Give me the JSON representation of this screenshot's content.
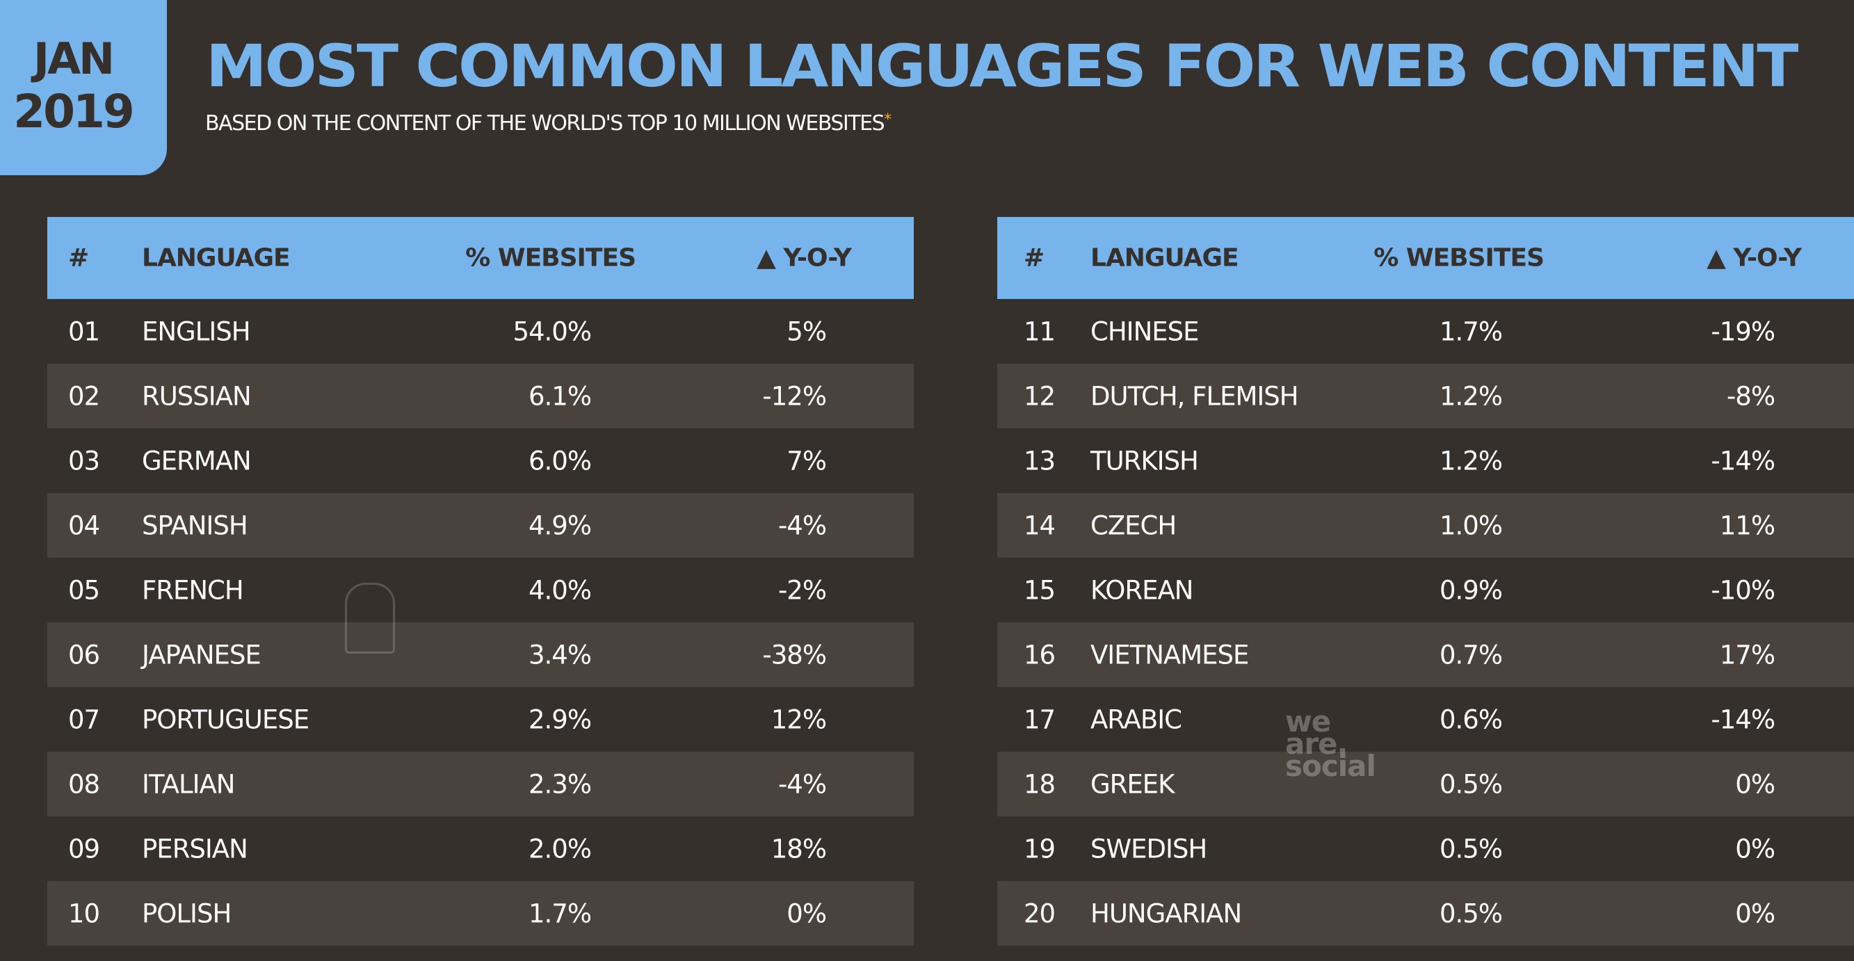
{
  "date": {
    "month": "JAN",
    "year": "2019"
  },
  "title": "MOST COMMON LANGUAGES FOR WEB CONTENT",
  "subtitle": "BASED ON THE CONTENT OF THE WORLD'S TOP 10 MILLION WEBSITES",
  "subtitle_marker": "*",
  "colors": {
    "accent": "#77b4ec",
    "background": "#35302c",
    "stripe": "#4a423d",
    "marker": "#f5a623"
  },
  "headers": {
    "num": "#",
    "language": "LANGUAGE",
    "pct": "% WEBSITES",
    "yoy": "▲ Y-O-Y"
  },
  "left_rows": [
    {
      "num": "01",
      "language": "ENGLISH",
      "pct": "54.0%",
      "yoy": "5%"
    },
    {
      "num": "02",
      "language": "RUSSIAN",
      "pct": "6.1%",
      "yoy": "-12%"
    },
    {
      "num": "03",
      "language": "GERMAN",
      "pct": "6.0%",
      "yoy": "7%"
    },
    {
      "num": "04",
      "language": "SPANISH",
      "pct": "4.9%",
      "yoy": "-4%"
    },
    {
      "num": "05",
      "language": "FRENCH",
      "pct": "4.0%",
      "yoy": "-2%"
    },
    {
      "num": "06",
      "language": "JAPANESE",
      "pct": "3.4%",
      "yoy": "-38%"
    },
    {
      "num": "07",
      "language": "PORTUGUESE",
      "pct": "2.9%",
      "yoy": "12%"
    },
    {
      "num": "08",
      "language": "ITALIAN",
      "pct": "2.3%",
      "yoy": "-4%"
    },
    {
      "num": "09",
      "language": "PERSIAN",
      "pct": "2.0%",
      "yoy": "18%"
    },
    {
      "num": "10",
      "language": "POLISH",
      "pct": "1.7%",
      "yoy": "0%"
    }
  ],
  "right_rows": [
    {
      "num": "11",
      "language": "CHINESE",
      "pct": "1.7%",
      "yoy": "-19%"
    },
    {
      "num": "12",
      "language": "DUTCH, FLEMISH",
      "pct": "1.2%",
      "yoy": "-8%"
    },
    {
      "num": "13",
      "language": "TURKISH",
      "pct": "1.2%",
      "yoy": "-14%"
    },
    {
      "num": "14",
      "language": "CZECH",
      "pct": "1.0%",
      "yoy": "11%"
    },
    {
      "num": "15",
      "language": "KOREAN",
      "pct": "0.9%",
      "yoy": "-10%"
    },
    {
      "num": "16",
      "language": "VIETNAMESE",
      "pct": "0.7%",
      "yoy": "17%"
    },
    {
      "num": "17",
      "language": "ARABIC",
      "pct": "0.6%",
      "yoy": "-14%"
    },
    {
      "num": "18",
      "language": "GREEK",
      "pct": "0.5%",
      "yoy": "0%"
    },
    {
      "num": "19",
      "language": "SWEDISH",
      "pct": "0.5%",
      "yoy": "0%"
    },
    {
      "num": "20",
      "language": "HUNGARIAN",
      "pct": "0.5%",
      "yoy": "0%"
    }
  ],
  "watermark": {
    "line1": "we",
    "line2": "are.",
    "line3": "social"
  },
  "icons": {
    "owl": "hootsuite-owl-icon"
  }
}
